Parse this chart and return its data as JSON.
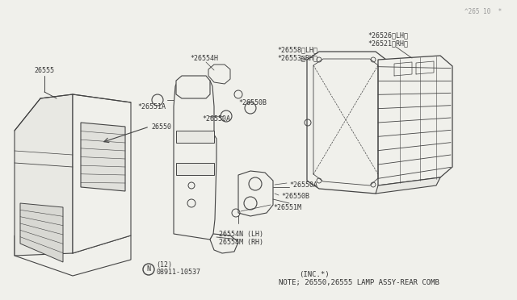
{
  "bg_color": "#f0f0eb",
  "line_color": "#444444",
  "text_color": "#333333",
  "title_note": "NOTE; 26550,26555 LAMP ASSY-REAR COMB",
  "title_note2": "(INC.*)",
  "watermark": "^265 10  *",
  "font_size_label": 6.0,
  "font_size_note": 6.5
}
